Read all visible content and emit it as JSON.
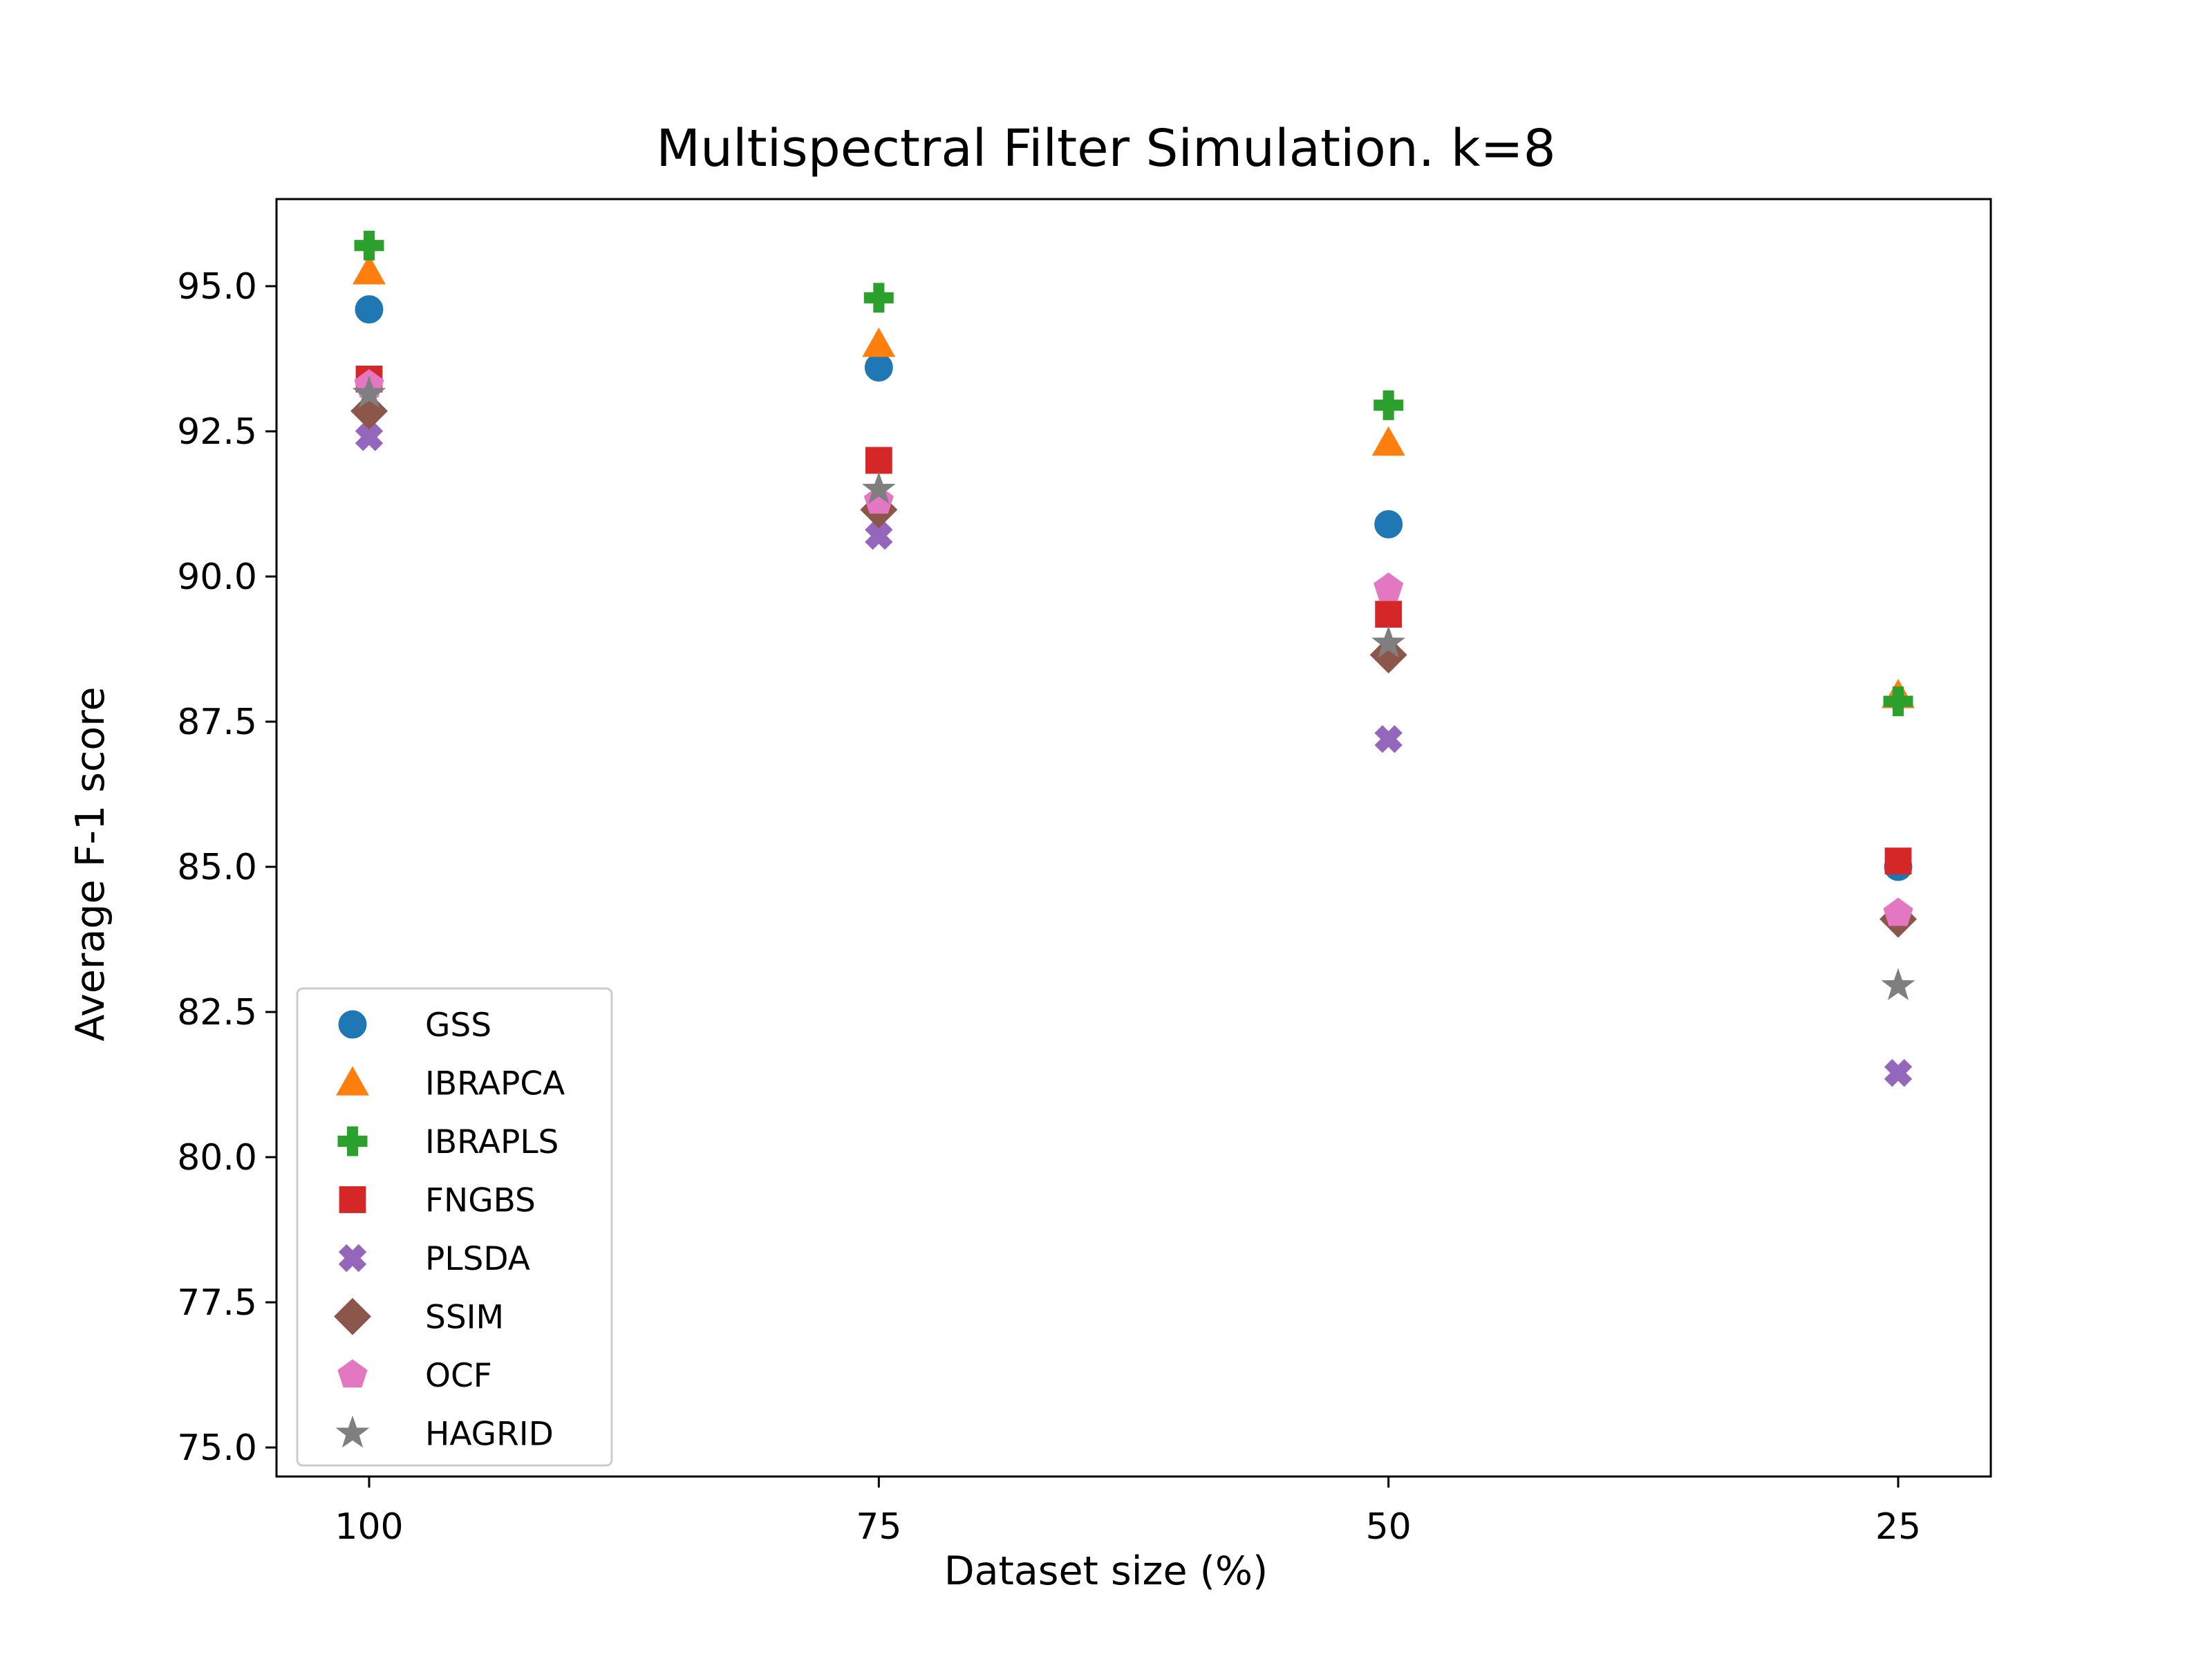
{
  "chart_data": {
    "type": "scatter",
    "title": "Multispectral Filter Simulation. k=8",
    "xlabel": "Dataset size (%)",
    "ylabel": "Average F-1 score",
    "categories": [
      "100",
      "75",
      "50",
      "25"
    ],
    "ylim": [
      74.5,
      96.5
    ],
    "yticks": [
      "75.0",
      "77.5",
      "80.0",
      "82.5",
      "85.0",
      "87.5",
      "90.0",
      "92.5",
      "95.0"
    ],
    "grid": false,
    "legend_position": "lower-left",
    "series": [
      {
        "name": "GSS",
        "marker": "circle",
        "color": "#1f77b4",
        "values": [
          94.6,
          93.6,
          90.9,
          85.0
        ]
      },
      {
        "name": "IBRAPCA",
        "marker": "triangle",
        "color": "#ff7f0e",
        "values": [
          95.25,
          94.0,
          92.3,
          87.95
        ]
      },
      {
        "name": "IBRAPLS",
        "marker": "plus",
        "color": "#2ca02c",
        "values": [
          95.7,
          94.8,
          92.95,
          87.85
        ]
      },
      {
        "name": "FNGBS",
        "marker": "square",
        "color": "#d62728",
        "values": [
          93.4,
          92.0,
          89.35,
          85.1
        ]
      },
      {
        "name": "PLSDA",
        "marker": "x",
        "color": "#9467bd",
        "values": [
          92.4,
          90.7,
          87.2,
          81.45
        ]
      },
      {
        "name": "SSIM",
        "marker": "diamond",
        "color": "#8c564b",
        "values": [
          92.85,
          91.15,
          88.65,
          84.1
        ]
      },
      {
        "name": "OCF",
        "marker": "pentagon",
        "color": "#e377c2",
        "values": [
          93.3,
          91.3,
          89.8,
          84.2
        ]
      },
      {
        "name": "HAGRID",
        "marker": "star",
        "color": "#7f7f7f",
        "values": [
          93.15,
          91.5,
          88.85,
          82.95
        ]
      }
    ]
  }
}
